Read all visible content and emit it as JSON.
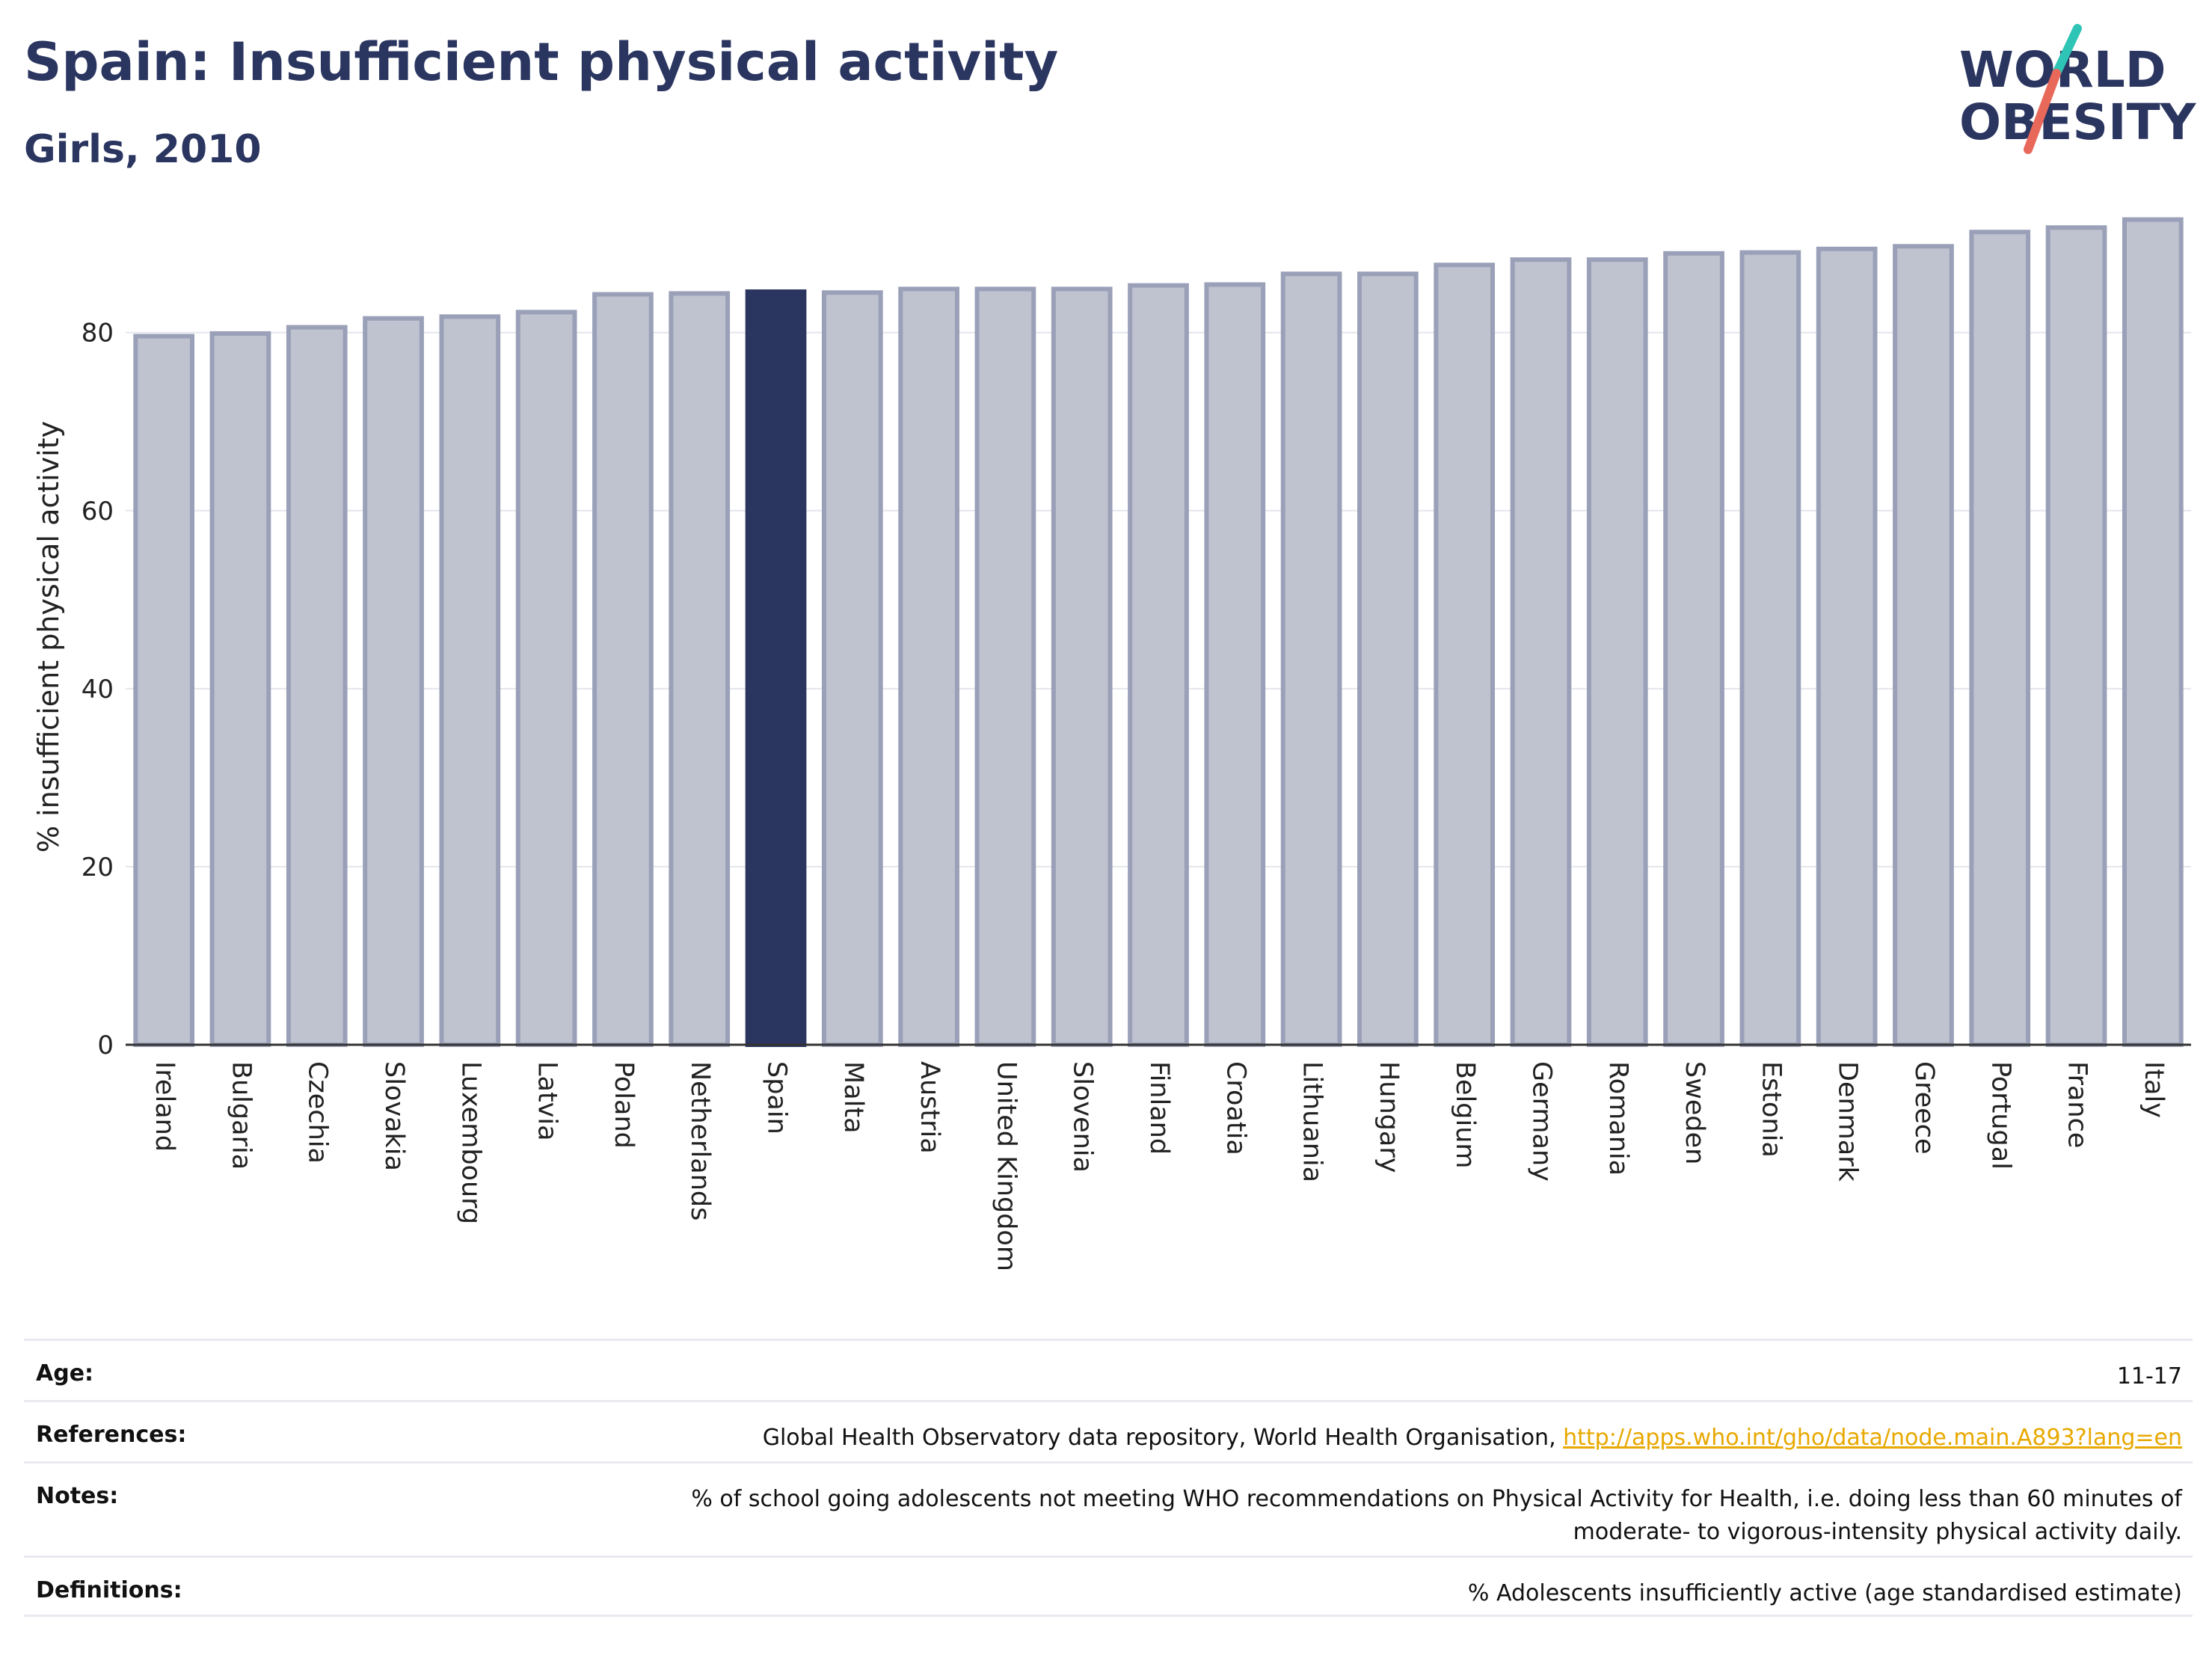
{
  "header": {
    "title": "Spain: Insufficient physical activity",
    "subtitle": "Girls, 2010"
  },
  "logo": {
    "line1": "WORLD",
    "line2": "OBESITY",
    "slash_colors": [
      "#2ec4b6",
      "#e8685a"
    ]
  },
  "colors": {
    "bar": "#bfc2cf",
    "bar_border": "#9aa0b8",
    "highlight": "#2a3560",
    "title": "#2a3560",
    "link": "#e8a800"
  },
  "chart_data": {
    "type": "bar",
    "xlabel": "",
    "ylabel": "% insufficient physical activity",
    "ylim": [
      0,
      93
    ],
    "yticks": [
      0,
      20,
      40,
      60,
      80
    ],
    "grid": true,
    "highlight": "Spain",
    "categories": [
      "Ireland",
      "Bulgaria",
      "Czechia",
      "Slovakia",
      "Luxembourg",
      "Latvia",
      "Poland",
      "Netherlands",
      "Spain",
      "Malta",
      "Austria",
      "United Kingdom",
      "Slovenia",
      "Finland",
      "Croatia",
      "Lithuania",
      "Hungary",
      "Belgium",
      "Germany",
      "Romania",
      "Sweden",
      "Estonia",
      "Denmark",
      "Greece",
      "Portugal",
      "France",
      "Italy"
    ],
    "values": [
      79.6,
      79.9,
      80.6,
      81.6,
      81.8,
      82.3,
      84.3,
      84.4,
      84.6,
      84.5,
      84.9,
      84.9,
      84.9,
      85.3,
      85.4,
      86.6,
      86.6,
      87.6,
      88.2,
      88.2,
      88.9,
      89.0,
      89.4,
      89.7,
      91.3,
      91.8,
      92.7
    ]
  },
  "info": {
    "age": {
      "label": "Age:",
      "value": "11-17"
    },
    "references": {
      "label": "References:",
      "value": "Global Health Observatory data repository, World Health Organisation, ",
      "link": "http://apps.who.int/gho/data/node.main.A893?lang=en"
    },
    "notes": {
      "label": "Notes:",
      "value_line1": "% of school going adolescents not meeting WHO recommendations on Physical Activity for Health, i.e. doing less than 60 minutes of",
      "value_line2": "moderate- to vigorous-intensity physical activity daily."
    },
    "definitions": {
      "label": "Definitions:",
      "value": "% Adolescents insufficiently active (age standardised estimate)"
    }
  }
}
